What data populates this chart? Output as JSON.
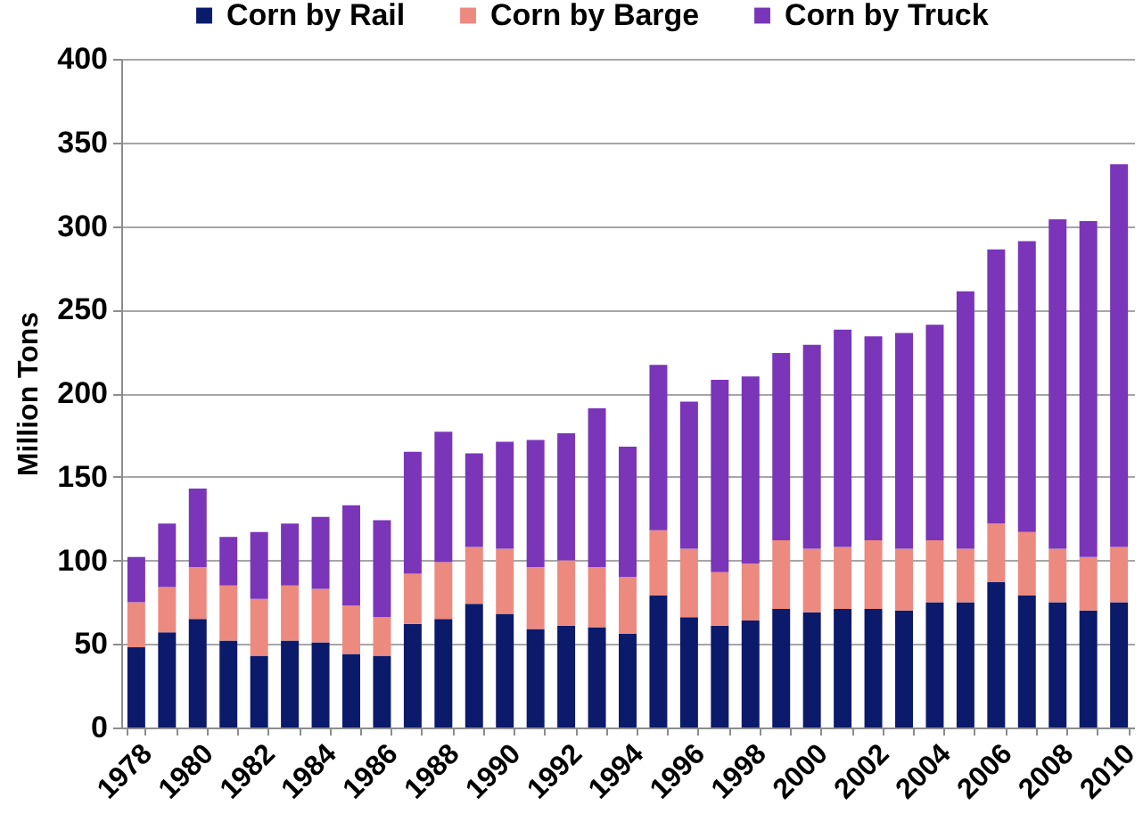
{
  "chart_data": {
    "type": "bar",
    "stacked": true,
    "ylabel": "Million Tons",
    "categories": [
      "1978",
      null,
      "1980",
      null,
      "1982",
      null,
      "1984",
      null,
      "1986",
      null,
      "1988",
      null,
      "1990",
      null,
      "1992",
      null,
      "1994",
      null,
      "1996",
      null,
      "1998",
      null,
      "2000",
      null,
      "2002",
      null,
      "2004",
      null,
      "2006",
      null,
      "2008",
      null,
      "2010"
    ],
    "series": [
      {
        "name": "Corn by Rail",
        "color": "#0c1a6b",
        "values": [
          48,
          57,
          65,
          52,
          43,
          52,
          51,
          44,
          43,
          62,
          65,
          74,
          68,
          59,
          61,
          60,
          56,
          79,
          66,
          61,
          64,
          71,
          69,
          71,
          71,
          70,
          75,
          75,
          87,
          79,
          75,
          70,
          75
        ]
      },
      {
        "name": "Corn by Barge",
        "color": "#ec8a80",
        "values": [
          27,
          27,
          31,
          33,
          34,
          33,
          32,
          29,
          23,
          30,
          34,
          34,
          39,
          37,
          39,
          36,
          34,
          39,
          41,
          32,
          34,
          41,
          38,
          37,
          41,
          37,
          37,
          32,
          35,
          38,
          32,
          32,
          33
        ]
      },
      {
        "name": "Corn by Truck",
        "color": "#7a35b8",
        "values": [
          27,
          38,
          47,
          29,
          40,
          37,
          43,
          60,
          58,
          73,
          78,
          56,
          64,
          76,
          76,
          95,
          78,
          99,
          88,
          115,
          112,
          112,
          122,
          130,
          122,
          129,
          129,
          154,
          164,
          174,
          197,
          201,
          229
        ]
      }
    ],
    "ylim": [
      0,
      400
    ],
    "yticks": [
      0,
      50,
      100,
      150,
      200,
      250,
      300,
      350,
      400
    ],
    "grid": "y",
    "legend": "top"
  }
}
